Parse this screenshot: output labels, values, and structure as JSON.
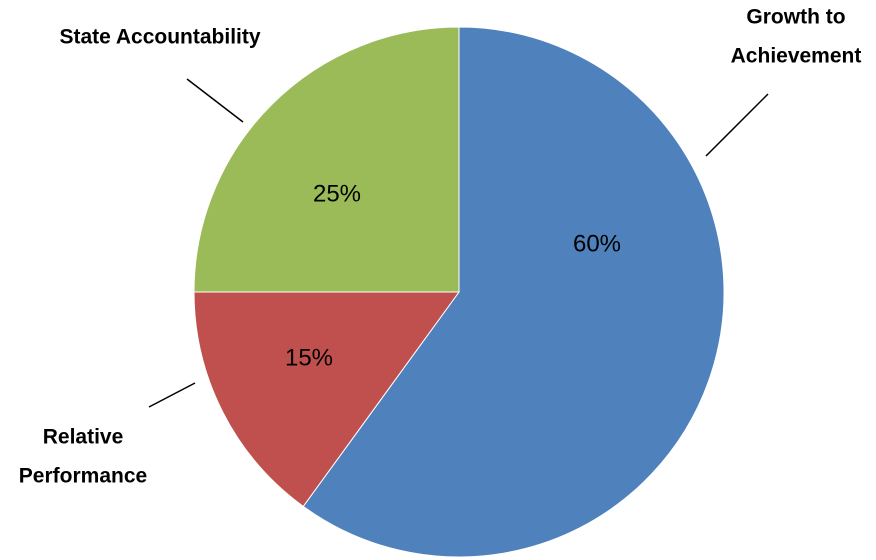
{
  "chart_data": {
    "type": "pie",
    "slices": [
      {
        "label_lines": [
          "Growth to",
          "Achievement"
        ],
        "value": 60,
        "value_label": "60%",
        "color": "#4F81BD"
      },
      {
        "label_lines": [
          "Relative",
          "Performance"
        ],
        "value": 15,
        "value_label": "15%",
        "color": "#C0504D"
      },
      {
        "label_lines": [
          "State Accountability"
        ],
        "value": 25,
        "value_label": "25%",
        "color": "#9BBB59"
      }
    ],
    "start": "12 o'clock",
    "direction": "clockwise",
    "legend": "none"
  }
}
